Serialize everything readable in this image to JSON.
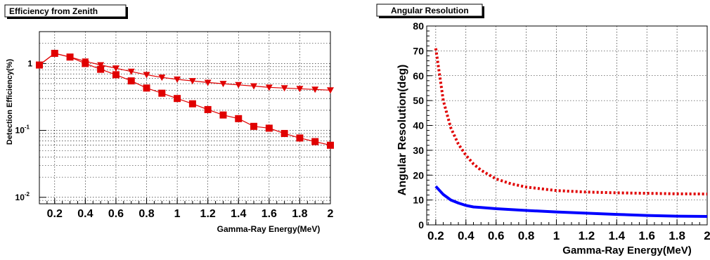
{
  "chart_data": [
    {
      "type": "line",
      "title": "Efficiency from Zenith",
      "xlabel": "Gamma-Ray Energy(MeV)",
      "ylabel": "Detection Efficiency(%)",
      "xlim": [
        0.1,
        2.0
      ],
      "ylim": [
        0.008,
        3.0
      ],
      "yscale": "log",
      "grid": true,
      "x_ticks": [
        {
          "v": 0.2,
          "label": "0.2"
        },
        {
          "v": 0.4,
          "label": "0.4"
        },
        {
          "v": 0.6,
          "label": "0.6"
        },
        {
          "v": 0.8,
          "label": "0.8"
        },
        {
          "v": 1.0,
          "label": "1"
        },
        {
          "v": 1.2,
          "label": "1.2"
        },
        {
          "v": 1.4,
          "label": "1.4"
        },
        {
          "v": 1.6,
          "label": "1.6"
        },
        {
          "v": 1.8,
          "label": "1.8"
        },
        {
          "v": 2.0,
          "label": "2"
        }
      ],
      "y_ticks": [
        {
          "v": 1,
          "base": "1",
          "exp": ""
        },
        {
          "v": 0.1,
          "base": "10",
          "exp": "-1"
        },
        {
          "v": 0.01,
          "base": "10",
          "exp": "-2"
        }
      ],
      "x": [
        0.1,
        0.2,
        0.3,
        0.4,
        0.5,
        0.6,
        0.7,
        0.8,
        0.9,
        1.0,
        1.1,
        1.2,
        1.3,
        1.4,
        1.5,
        1.6,
        1.7,
        1.8,
        1.9,
        2.0
      ],
      "series": [
        {
          "marker": "triangle-down",
          "color": "#e00000",
          "values": [
            0.95,
            1.42,
            1.25,
            1.08,
            0.95,
            0.85,
            0.76,
            0.68,
            0.62,
            0.58,
            0.55,
            0.52,
            0.5,
            0.48,
            0.46,
            0.44,
            0.43,
            0.42,
            0.41,
            0.4
          ]
        },
        {
          "marker": "square",
          "color": "#e00000",
          "values": [
            0.95,
            1.42,
            1.25,
            1.0,
            0.82,
            0.68,
            0.55,
            0.43,
            0.36,
            0.3,
            0.25,
            0.205,
            0.17,
            0.15,
            0.115,
            0.108,
            0.09,
            0.077,
            0.068,
            0.06
          ]
        }
      ]
    },
    {
      "type": "line",
      "title": "Angular Resolution",
      "xlabel": "Gamma-Ray Energy(MeV)",
      "ylabel": "Angular Resolution(deg)",
      "xlim": [
        0.14,
        2.0
      ],
      "ylim": [
        0,
        80
      ],
      "grid": true,
      "x_ticks": [
        {
          "v": 0.2,
          "label": "0.2"
        },
        {
          "v": 0.4,
          "label": "0.4"
        },
        {
          "v": 0.6,
          "label": "0.6"
        },
        {
          "v": 0.8,
          "label": "0.8"
        },
        {
          "v": 1.0,
          "label": "1"
        },
        {
          "v": 1.2,
          "label": "1.2"
        },
        {
          "v": 1.4,
          "label": "1.4"
        },
        {
          "v": 1.6,
          "label": "1.6"
        },
        {
          "v": 1.8,
          "label": "1.8"
        },
        {
          "v": 2.0,
          "label": "2"
        }
      ],
      "y_ticks": [
        {
          "v": 0,
          "label": "0"
        },
        {
          "v": 10,
          "label": "10"
        },
        {
          "v": 20,
          "label": "20"
        },
        {
          "v": 30,
          "label": "30"
        },
        {
          "v": 40,
          "label": "40"
        },
        {
          "v": 50,
          "label": "50"
        },
        {
          "v": 60,
          "label": "60"
        },
        {
          "v": 70,
          "label": "70"
        },
        {
          "v": 80,
          "label": "80"
        }
      ],
      "series": [
        {
          "style": "dotted",
          "color": "#e00000",
          "x": [
            0.2,
            0.25,
            0.3,
            0.35,
            0.4,
            0.45,
            0.5,
            0.6,
            0.7,
            0.8,
            0.9,
            1.0,
            1.2,
            1.4,
            1.6,
            1.8,
            2.0
          ],
          "values": [
            71,
            50,
            39,
            32.5,
            28,
            24.5,
            22,
            18.5,
            16.5,
            15.2,
            14.5,
            13.8,
            13.2,
            12.9,
            12.7,
            12.5,
            12.4
          ]
        },
        {
          "style": "solid",
          "color": "#0000ff",
          "x": [
            0.2,
            0.25,
            0.3,
            0.35,
            0.4,
            0.45,
            0.5,
            0.6,
            0.8,
            1.0,
            1.2,
            1.4,
            1.6,
            1.8,
            2.0
          ],
          "values": [
            15.5,
            12.2,
            10,
            8.8,
            7.8,
            7.2,
            7,
            6.5,
            5.8,
            5.2,
            4.7,
            4.2,
            3.8,
            3.5,
            3.4
          ]
        }
      ]
    }
  ]
}
